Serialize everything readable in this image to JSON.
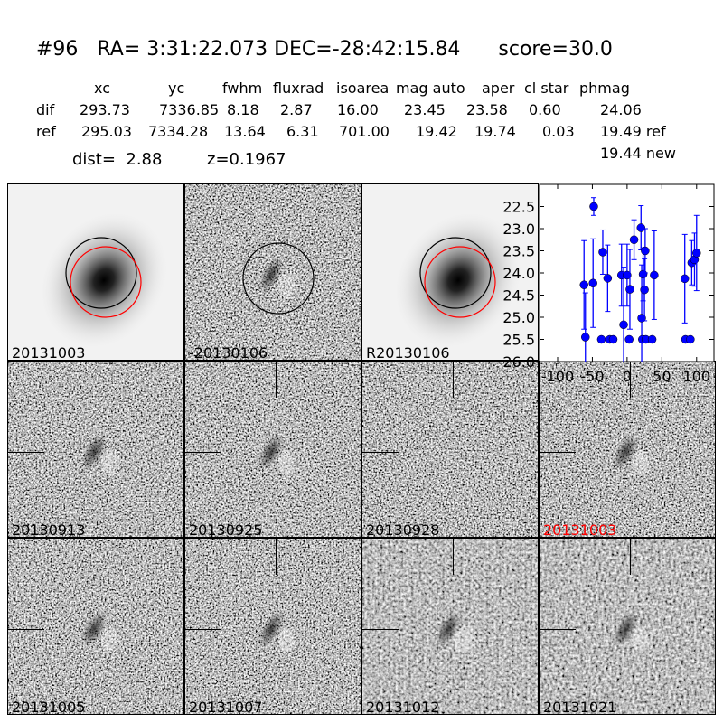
{
  "header": {
    "title": "#96   RA= 3:31:22.073 DEC=-28:42:15.84      score=30.0",
    "columns": [
      "xc",
      "yc",
      "fwhm",
      "fluxrad",
      "isoarea",
      "mag auto",
      "aper",
      "cl star",
      "phmag"
    ],
    "rows": [
      {
        "name": "dif",
        "values": [
          "293.73",
          "7336.85",
          "8.18",
          "2.87",
          "16.00",
          "23.45",
          "23.58",
          "0.60",
          "24.06"
        ]
      },
      {
        "name": "ref",
        "values": [
          "295.03",
          "7334.28",
          "13.64",
          "6.31",
          "701.00",
          "19.42",
          "19.74",
          "0.03",
          "19.49 ref"
        ]
      }
    ],
    "extra_phmag": "19.44 new",
    "dist": "dist=  2.88",
    "z": "z=0.1967"
  },
  "panels": [
    "20131003",
    "-20130106",
    "R20130106",
    "20130913",
    "20130925",
    "20130928",
    "20131003",
    "20131005",
    "20131007",
    "20131012",
    "20131021"
  ],
  "highlight_color": "#ff0000",
  "chart_data": {
    "type": "scatter",
    "xlim": [
      -126,
      125
    ],
    "ylim": [
      26.0,
      22.0
    ],
    "y_inverted": true,
    "xticks": [
      "-100",
      "-50",
      "0",
      "50",
      "100"
    ],
    "yticks": [
      "22.5",
      "23.0",
      "23.5",
      "24.0",
      "24.5",
      "25.0",
      "25.5",
      "26.0"
    ],
    "marker_color": "#0000ff",
    "points": [
      [
        -62,
        24.27,
        1.0
      ],
      [
        -60,
        25.45,
        1.0
      ],
      [
        -49,
        24.23,
        1.0
      ],
      [
        -48,
        22.5,
        0.2
      ],
      [
        -35,
        23.53,
        0.5
      ],
      [
        -37,
        25.5,
        0
      ],
      [
        -28,
        24.12,
        0.75
      ],
      [
        -25,
        25.5,
        0
      ],
      [
        -20,
        25.5,
        0
      ],
      [
        -8,
        24.05,
        0.7
      ],
      [
        -5,
        25.17,
        1.3
      ],
      [
        0,
        24.05,
        0.7
      ],
      [
        3,
        25.5,
        0
      ],
      [
        4,
        24.37,
        0.9
      ],
      [
        10,
        23.25,
        0.45
      ],
      [
        20,
        22.98,
        0.5
      ],
      [
        21,
        25.02,
        1.2
      ],
      [
        22,
        25.5,
        0
      ],
      [
        23,
        24.03,
        0.6
      ],
      [
        25,
        24.38,
        0.7
      ],
      [
        26,
        23.5,
        0.5
      ],
      [
        27,
        25.5,
        0
      ],
      [
        36,
        25.5,
        0
      ],
      [
        39,
        24.05,
        1.0
      ],
      [
        83,
        24.13,
        1.0
      ],
      [
        84,
        25.5,
        0
      ],
      [
        91,
        25.5,
        0
      ],
      [
        93,
        23.77,
        0.5
      ],
      [
        97,
        23.7,
        0.6
      ],
      [
        100,
        23.55,
        0.85
      ]
    ]
  }
}
